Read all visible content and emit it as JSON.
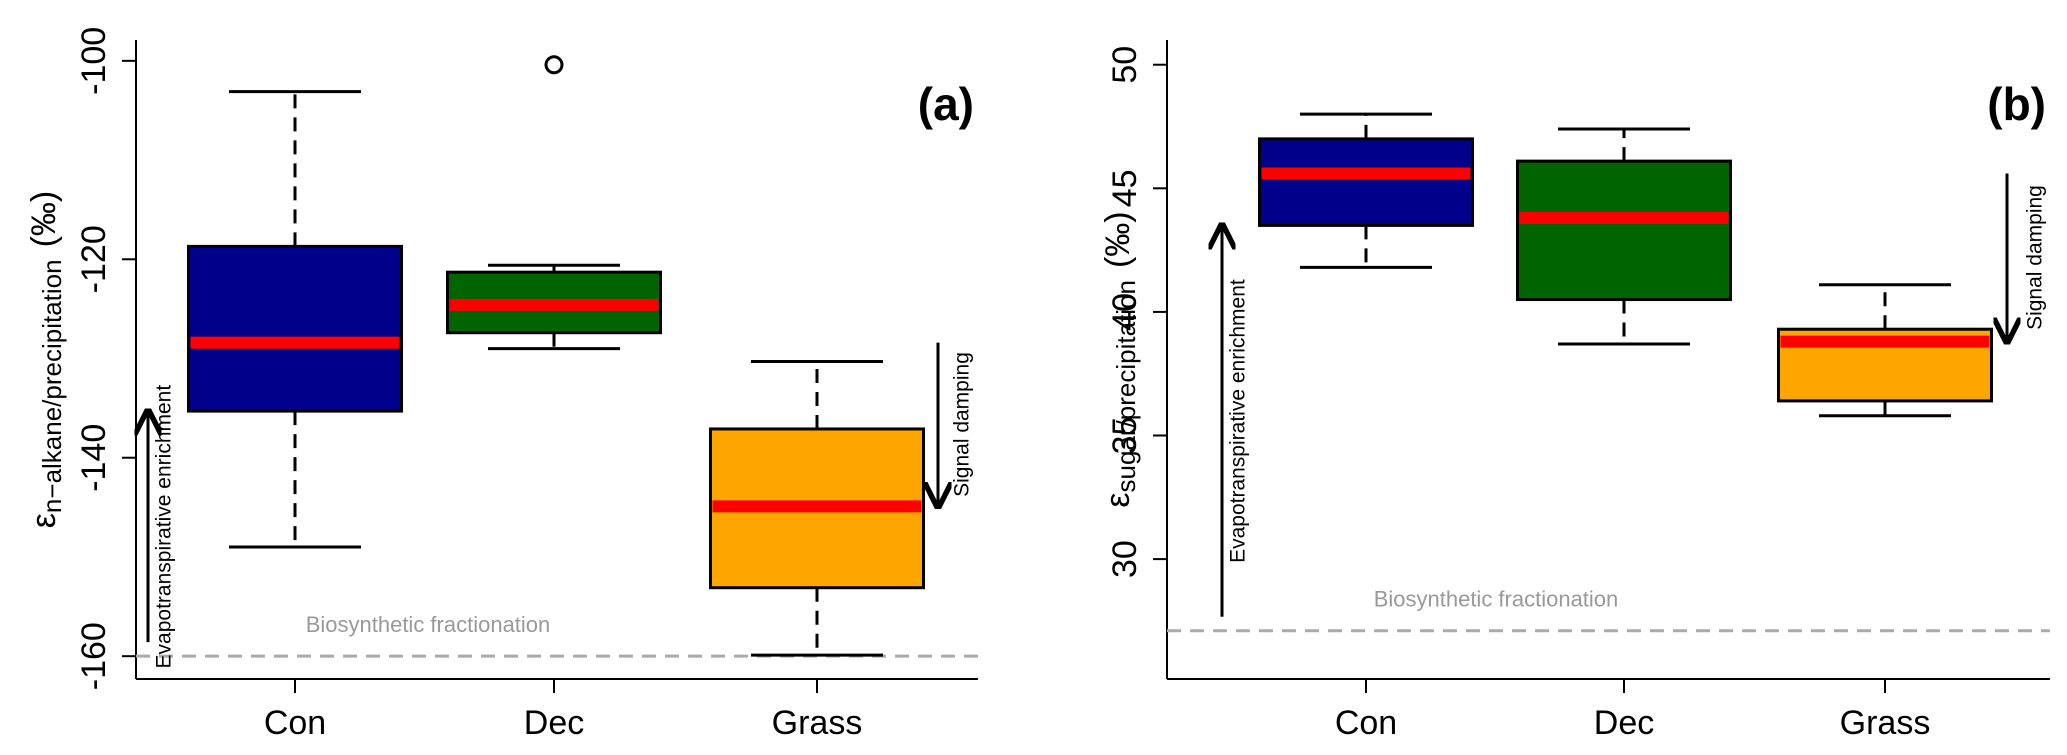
{
  "chart_data": [
    {
      "type": "boxplot",
      "panel_label": "(a)",
      "ylabel": {
        "symbol": "ε",
        "subscript": "n−alkane/precipitation",
        "unit": "(‰)"
      },
      "categories": [
        "Con",
        "Dec",
        "Grass"
      ],
      "colors": [
        "#00008b",
        "#006400",
        "#ffa500"
      ],
      "median_color": "#ff0000",
      "boxes": [
        {
          "low": -149.0,
          "q1": -135.3,
          "median": -128.4,
          "q3": -118.7,
          "high": -103.1,
          "outliers": []
        },
        {
          "low": -129.0,
          "q1": -127.4,
          "median": -124.6,
          "q3": -121.3,
          "high": -120.6,
          "outliers": [
            -100.4
          ]
        },
        {
          "low": -159.9,
          "q1": -153.1,
          "median": -144.9,
          "q3": -137.1,
          "high": -130.3,
          "outliers": []
        }
      ],
      "reference_line": {
        "value": -160,
        "label": "Biosynthetic fractionation"
      },
      "annotations": {
        "enrichment": "Evapotranspirative enrichment",
        "damping": "Signal damping"
      },
      "ylim": [
        -162.3,
        -97.9
      ],
      "yticks": [
        -160,
        -140,
        -120,
        -100
      ]
    },
    {
      "type": "boxplot",
      "panel_label": "(b)",
      "ylabel": {
        "symbol": "ε",
        "subscript": "sugar/precipitation",
        "unit": "(‰)"
      },
      "categories": [
        "Con",
        "Dec",
        "Grass"
      ],
      "colors": [
        "#00008b",
        "#006400",
        "#ffa500"
      ],
      "median_color": "#ff0000",
      "boxes": [
        {
          "low": 41.8,
          "q1": 43.5,
          "median": 45.6,
          "q3": 47.0,
          "high": 48.0,
          "outliers": []
        },
        {
          "low": 38.7,
          "q1": 40.5,
          "median": 43.8,
          "q3": 46.1,
          "high": 47.4,
          "outliers": []
        },
        {
          "low": 35.8,
          "q1": 36.4,
          "median": 38.8,
          "q3": 39.3,
          "high": 41.1,
          "outliers": []
        }
      ],
      "reference_line": {
        "value": 27.1,
        "label": "Biosynthetic fractionation"
      },
      "annotations": {
        "enrichment": "Evapotranspirative enrichment",
        "damping": "Signal damping"
      },
      "ylim": [
        25.15,
        51.0
      ],
      "yticks": [
        30,
        35,
        40,
        45,
        50
      ]
    }
  ]
}
